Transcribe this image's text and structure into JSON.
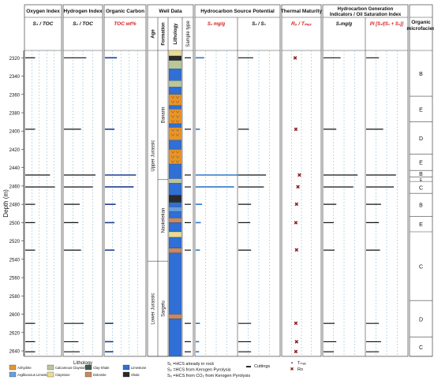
{
  "chart_data": {
    "type": "well-log",
    "ylabel": "Depth (m)",
    "depth_ticks": [
      2320,
      2340,
      2360,
      2380,
      2400,
      2420,
      2440,
      2460,
      2480,
      2500,
      2520,
      2540,
      2560,
      2580,
      2600,
      2620,
      2640
    ],
    "depth_range": [
      2312,
      2646
    ],
    "column_groups": [
      {
        "title": "Oxygen Index",
        "subtitle": "S₃ / TOC"
      },
      {
        "title": "Hydrogen Index",
        "subtitle": "S₂ / TOC"
      },
      {
        "title": "Organic Carbon",
        "subtitle": "TOC wt%"
      },
      {
        "title": "Well Data",
        "subtitle": ""
      },
      {
        "title": "Hydrocarbon Source Potential",
        "subtitle": "S₂ mg/g  |  S₂ / S₃"
      },
      {
        "title": "Thermal Maturity",
        "subtitle": "Rₒ / Tₘₐₓ"
      },
      {
        "title": "Hydrocarbon Generation Indicators / Oil Saturation Index",
        "subtitle": "S₁mg/g  |  PI [S₁/(S₁ + S₂)]"
      },
      {
        "title": "Organic microfacies",
        "subtitle": ""
      }
    ],
    "well_data_headers": [
      "Age",
      "Formation",
      "Lithology",
      "Sample type"
    ],
    "age_units": [
      {
        "name": "Upper Jurassic",
        "top": 2312,
        "base": 2542
      },
      {
        "name": "Lower Jurassic",
        "top": 2542,
        "base": 2646
      }
    ],
    "formations": [
      {
        "name": "Banarin",
        "top": 2312,
        "base": 2453
      },
      {
        "name": "Naokelekan",
        "top": 2453,
        "base": 2542
      },
      {
        "name": "Sargelu",
        "top": 2542,
        "base": 2646
      }
    ],
    "sample_depths": [
      2320,
      2398,
      2448,
      2461,
      2480,
      2500,
      2530,
      2610,
      2630,
      2641
    ],
    "curves": {
      "oxygen_index": [
        40,
        40,
        100,
        120,
        40,
        40,
        40,
        40,
        40,
        40
      ],
      "hydrogen_index": [
        170,
        130,
        240,
        220,
        120,
        110,
        130,
        150,
        110,
        120
      ],
      "toc": [
        1.0,
        0.8,
        2.6,
        2.4,
        0.9,
        0.8,
        0.8,
        0.7,
        0.7,
        0.7
      ],
      "s2": [
        2.0,
        1.0,
        10.0,
        9.0,
        1.5,
        1.2,
        1.0,
        1.0,
        0.8,
        0.8
      ],
      "s2_s3": [
        3.5,
        2.5,
        6.5,
        6.0,
        3.0,
        2.8,
        3.0,
        3.0,
        3.0,
        3.0
      ],
      "tmax": [
        430,
        431,
        436,
        434,
        432,
        431,
        432,
        431,
        432,
        431
      ],
      "s1": [
        2.0,
        1.5,
        4.0,
        3.5,
        1.5,
        1.2,
        1.3,
        1.3,
        1.5,
        1.2
      ],
      "pi": [
        0.12,
        0.16,
        0.28,
        0.26,
        0.14,
        0.12,
        0.13,
        0.12,
        0.14,
        0.12
      ]
    },
    "lithology_intervals": [
      {
        "top": 2312,
        "base": 2318,
        "lith": "claystone"
      },
      {
        "top": 2318,
        "base": 2323,
        "lith": "shale"
      },
      {
        "top": 2323,
        "base": 2332,
        "lith": "calcareous_claystone"
      },
      {
        "top": 2332,
        "base": 2345,
        "lith": "limestone"
      },
      {
        "top": 2345,
        "base": 2352,
        "lith": "calcareous_claystone"
      },
      {
        "top": 2352,
        "base": 2360,
        "lith": "limestone"
      },
      {
        "top": 2360,
        "base": 2372,
        "lith": "anhydrite"
      },
      {
        "top": 2372,
        "base": 2376,
        "lith": "limestone"
      },
      {
        "top": 2376,
        "base": 2392,
        "lith": "anhydrite"
      },
      {
        "top": 2392,
        "base": 2396,
        "lith": "limestone"
      },
      {
        "top": 2396,
        "base": 2410,
        "lith": "anhydrite"
      },
      {
        "top": 2410,
        "base": 2420,
        "lith": "limestone"
      },
      {
        "top": 2420,
        "base": 2436,
        "lith": "anhydrite"
      },
      {
        "top": 2436,
        "base": 2452,
        "lith": "limestone"
      },
      {
        "top": 2452,
        "base": 2457,
        "lith": "calcareous_claystone"
      },
      {
        "top": 2457,
        "base": 2470,
        "lith": "limestone"
      },
      {
        "top": 2470,
        "base": 2478,
        "lith": "shale"
      },
      {
        "top": 2478,
        "base": 2483,
        "lith": "limestone"
      },
      {
        "top": 2483,
        "base": 2488,
        "lith": "argillaceous_limestone"
      },
      {
        "top": 2488,
        "base": 2495,
        "lith": "limestone"
      },
      {
        "top": 2495,
        "base": 2500,
        "lith": "dolomite"
      },
      {
        "top": 2500,
        "base": 2510,
        "lith": "limestone"
      },
      {
        "top": 2510,
        "base": 2516,
        "lith": "claystone"
      },
      {
        "top": 2516,
        "base": 2528,
        "lith": "limestone"
      },
      {
        "top": 2528,
        "base": 2533,
        "lith": "dolomite"
      },
      {
        "top": 2533,
        "base": 2600,
        "lith": "limestone"
      },
      {
        "top": 2600,
        "base": 2605,
        "lith": "dolomite"
      },
      {
        "top": 2605,
        "base": 2646,
        "lith": "limestone"
      }
    ],
    "microfacies": [
      {
        "top": 2312,
        "base": 2362,
        "label": "B"
      },
      {
        "top": 2362,
        "base": 2390,
        "label": "E"
      },
      {
        "top": 2390,
        "base": 2425,
        "label": "D"
      },
      {
        "top": 2425,
        "base": 2443,
        "label": "E"
      },
      {
        "top": 2443,
        "base": 2450,
        "label": "B"
      },
      {
        "top": 2450,
        "base": 2455,
        "label": "E"
      },
      {
        "top": 2455,
        "base": 2468,
        "label": "C"
      },
      {
        "top": 2468,
        "base": 2493,
        "label": "B"
      },
      {
        "top": 2493,
        "base": 2510,
        "label": "E"
      },
      {
        "top": 2510,
        "base": 2585,
        "label": "C"
      },
      {
        "top": 2585,
        "base": 2625,
        "label": "D"
      },
      {
        "top": 2625,
        "base": 2646,
        "label": "C"
      }
    ],
    "legend": {
      "lithology_title": "Lithology",
      "lithology_items": [
        {
          "label": "Anhydrite",
          "color": "#e8952a"
        },
        {
          "label": "Argillaceous Limestone",
          "color": "#6a9fd6"
        },
        {
          "label": "Calcareous Claystone",
          "color": "#b9c79a"
        },
        {
          "label": "Claystone",
          "color": "#e8dc94"
        },
        {
          "label": "Clay-Shale",
          "color": "#3f5b48"
        },
        {
          "label": "Dolomite",
          "color": "#c9885e"
        },
        {
          "label": "Limestone",
          "color": "#2f6fd6"
        },
        {
          "label": "Shale",
          "color": "#2a2a2a"
        }
      ],
      "s_definitions": [
        "S₁ =HCS already in rock",
        "S₂ =HCS from Kerogen Pyrolysis",
        "S₃ =HCS from CO₂ from Kerogen Pyrolysis"
      ],
      "symbols": [
        {
          "label": "Cuttings",
          "symbol": "▬"
        },
        {
          "label": "Tₘₐₓ",
          "symbol": "▪"
        },
        {
          "label": "Ro",
          "symbol": "✖"
        }
      ]
    },
    "colors": {
      "bar": "#111111",
      "toc_bar": "#1f3b8f",
      "s2_bar": "#2a78c8",
      "marker": "#8b1a1a",
      "gridline": "#7fb6d6",
      "accent_red": "#d42020"
    }
  }
}
